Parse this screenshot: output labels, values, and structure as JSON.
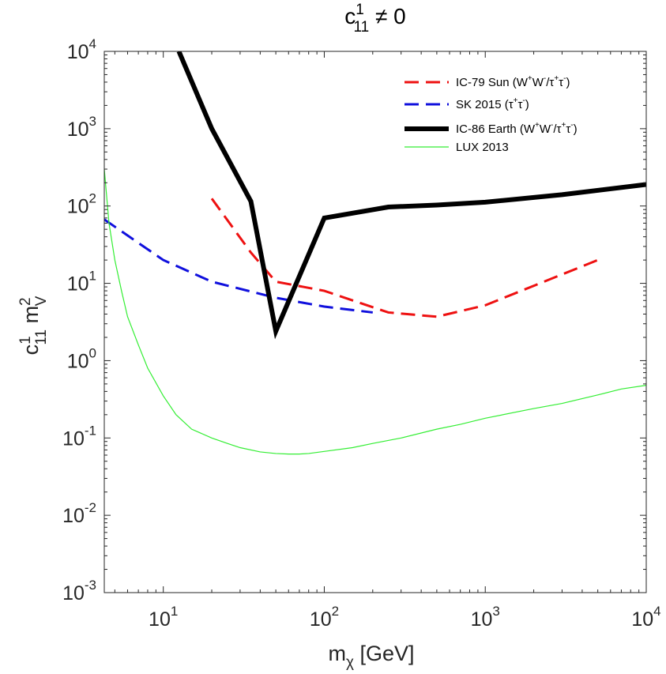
{
  "chart_data": {
    "type": "line",
    "title": {
      "base": "c",
      "sup": "1",
      "sub": "11",
      "rest": " ≠ 0"
    },
    "xlabel": {
      "base": "m",
      "sub": "χ",
      "rest": " [GeV]"
    },
    "ylabel": {
      "c": "c",
      "c_sup": "1",
      "c_sub": "11",
      "m": " m",
      "m_sup": "2",
      "m_sub": "V"
    },
    "xscale": "log",
    "yscale": "log",
    "xlim": [
      4.3,
      10000
    ],
    "ylim": [
      0.001,
      10000
    ],
    "x_ticks": [
      {
        "value": 10,
        "base": "10",
        "exp": "1"
      },
      {
        "value": 100,
        "base": "10",
        "exp": "2"
      },
      {
        "value": 1000,
        "base": "10",
        "exp": "3"
      },
      {
        "value": 10000,
        "base": "10",
        "exp": "4"
      }
    ],
    "y_ticks": [
      {
        "value": 0.001,
        "base": "10",
        "exp": "-3"
      },
      {
        "value": 0.01,
        "base": "10",
        "exp": "-2"
      },
      {
        "value": 0.1,
        "base": "10",
        "exp": "-1"
      },
      {
        "value": 1,
        "base": "10",
        "exp": "0"
      },
      {
        "value": 10,
        "base": "10",
        "exp": "1"
      },
      {
        "value": 100,
        "base": "10",
        "exp": "2"
      },
      {
        "value": 1000,
        "base": "10",
        "exp": "3"
      },
      {
        "value": 10000,
        "base": "10",
        "exp": "4"
      }
    ],
    "legend_position": "top-right",
    "series": [
      {
        "name": "IC-79 Sun (W⁺W⁻/τ⁺τ⁻)",
        "legend_parts": [
          [
            "IC-79 Sun (W",
            ""
          ],
          [
            "+",
            "sup"
          ],
          [
            "W",
            ""
          ],
          [
            "-",
            "sup"
          ],
          [
            "/τ",
            ""
          ],
          [
            "+",
            "sup"
          ],
          [
            "τ",
            ""
          ],
          [
            "-",
            "sup"
          ],
          [
            ")",
            ""
          ]
        ],
        "color": "#ee1111",
        "style": "dashed",
        "width": 3,
        "x": [
          20,
          35,
          50,
          100,
          250,
          500,
          1000,
          5000
        ],
        "y": [
          125,
          25,
          10.5,
          8,
          4.2,
          3.7,
          5.2,
          20
        ]
      },
      {
        "name": "SK 2015 (τ⁺τ⁻)",
        "legend_parts": [
          [
            "SK 2015 (τ",
            ""
          ],
          [
            "+",
            "sup"
          ],
          [
            "τ",
            ""
          ],
          [
            "-",
            "sup"
          ],
          [
            ")",
            ""
          ]
        ],
        "color": "#1010dd",
        "style": "dashed",
        "width": 3,
        "x": [
          4.3,
          10,
          20,
          50,
          100,
          200
        ],
        "y": [
          67,
          20,
          10.5,
          6.5,
          5,
          4.2
        ]
      },
      {
        "name": "IC-86 Earth (W⁺W⁻/τ⁺τ⁻)",
        "legend_parts": [
          [
            "IC-86 Earth (W",
            ""
          ],
          [
            "+",
            "sup"
          ],
          [
            "W",
            ""
          ],
          [
            "-",
            "sup"
          ],
          [
            "/τ",
            ""
          ],
          [
            "+",
            "sup"
          ],
          [
            "τ",
            ""
          ],
          [
            "-",
            "sup"
          ],
          [
            ")",
            ""
          ]
        ],
        "color": "#000000",
        "style": "solid",
        "width": 6,
        "x": [
          12.5,
          20,
          35,
          50,
          100,
          250,
          500,
          1000,
          3000,
          10000
        ],
        "y": [
          10000,
          1000,
          115,
          2.4,
          70,
          97,
          103,
          112,
          140,
          190
        ]
      },
      {
        "name": "LUX 2013",
        "legend_parts": [
          [
            "LUX 2013",
            ""
          ]
        ],
        "color": "#33ee33",
        "style": "solid",
        "width": 1.2,
        "x": [
          4.3,
          4.6,
          5,
          5.5,
          6,
          7,
          8,
          10,
          12,
          15,
          20,
          25,
          30,
          40,
          50,
          60,
          70,
          80,
          100,
          150,
          200,
          300,
          500,
          700,
          1000,
          2000,
          3000,
          5000,
          7000,
          10000
        ],
        "y": [
          300,
          60,
          20,
          8,
          3.7,
          1.6,
          0.8,
          0.35,
          0.2,
          0.13,
          0.1,
          0.085,
          0.075,
          0.066,
          0.063,
          0.062,
          0.062,
          0.063,
          0.067,
          0.075,
          0.085,
          0.1,
          0.13,
          0.15,
          0.18,
          0.24,
          0.28,
          0.36,
          0.43,
          0.48
        ]
      }
    ]
  }
}
